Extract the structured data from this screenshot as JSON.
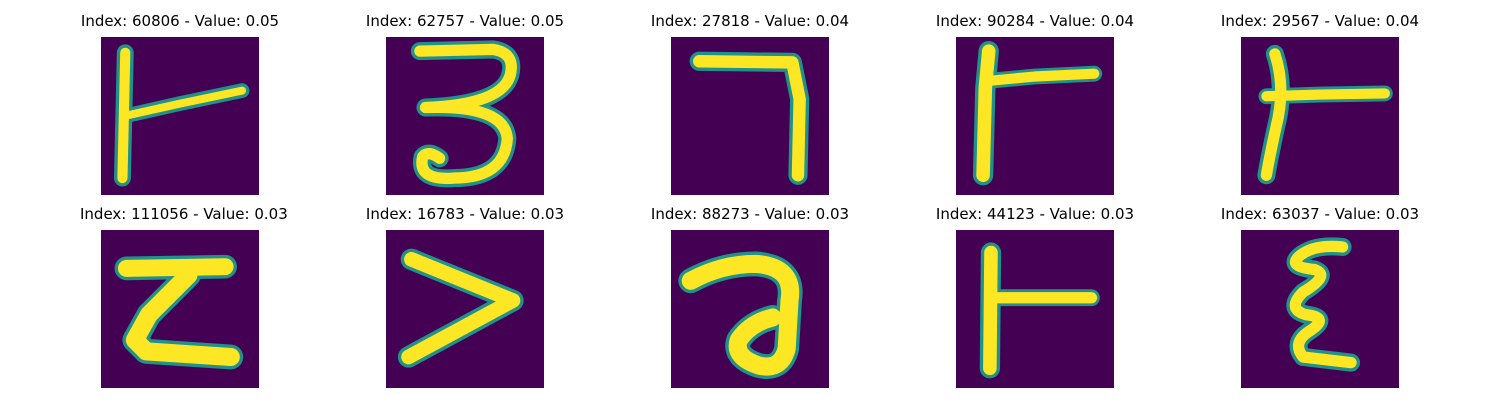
{
  "colors": {
    "background": "#440154",
    "stroke_edge": "#21918c",
    "stroke_mid": "#5ec962",
    "stroke_core": "#fde725"
  },
  "samples": [
    {
      "index": "60806",
      "value": "0.05",
      "title": "Index: 60806 - Value: 0.05",
      "glyph": "rotated-T-icon"
    },
    {
      "index": "62757",
      "value": "0.05",
      "title": "Index: 62757 - Value: 0.05",
      "glyph": "digit-3-icon"
    },
    {
      "index": "27818",
      "value": "0.04",
      "title": "Index: 27818 - Value: 0.04",
      "glyph": "digit-7-icon"
    },
    {
      "index": "90284",
      "value": "0.04",
      "title": "Index: 90284 - Value: 0.04",
      "glyph": "rotated-T-icon"
    },
    {
      "index": "29567",
      "value": "0.04",
      "title": "Index: 29567 - Value: 0.04",
      "glyph": "rotated-T-icon"
    },
    {
      "index": "111056",
      "value": "0.03",
      "title": "Index: 111056 - Value: 0.03",
      "glyph": "z-shape-icon"
    },
    {
      "index": "16783",
      "value": "0.03",
      "title": "Index: 16783 - Value: 0.03",
      "glyph": "greater-than-icon"
    },
    {
      "index": "88273",
      "value": "0.03",
      "title": "Index: 88273 - Value: 0.03",
      "glyph": "hook-shape-icon"
    },
    {
      "index": "44123",
      "value": "0.03",
      "title": "Index: 44123 - Value: 0.03",
      "glyph": "rotated-T-icon"
    },
    {
      "index": "63037",
      "value": "0.03",
      "title": "Index: 63037 - Value: 0.03",
      "glyph": "epsilon-icon"
    }
  ]
}
